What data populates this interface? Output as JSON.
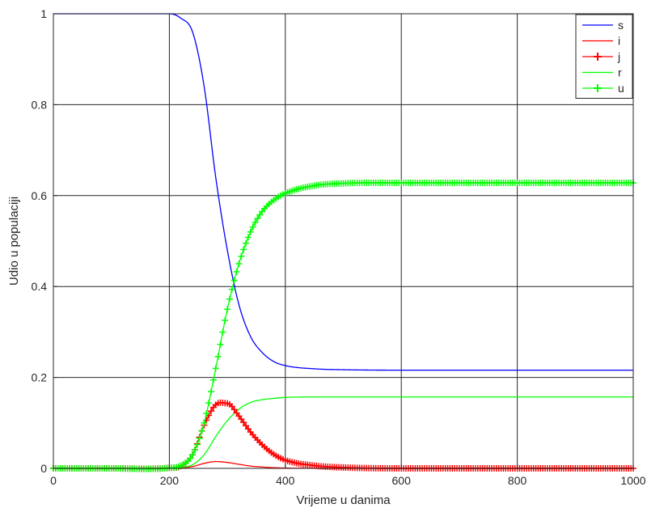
{
  "chart_data": {
    "type": "line",
    "title": "",
    "xlabel": "Vrijeme u danima",
    "ylabel": "Udio u populaciji",
    "xlim": [
      0,
      1000
    ],
    "ylim": [
      0,
      1
    ],
    "xticks": [
      "0",
      "200",
      "400",
      "600",
      "800",
      "1000"
    ],
    "yticks": [
      "0",
      "0.2",
      "0.4",
      "0.6",
      "0.8",
      "1"
    ],
    "grid": true,
    "legend_position": "top-right",
    "x": [
      0,
      100,
      200,
      220,
      240,
      260,
      280,
      300,
      320,
      340,
      360,
      380,
      400,
      450,
      500,
      600,
      800,
      1000
    ],
    "series": [
      {
        "name": "s",
        "color": "#0000ff",
        "marker": "none",
        "values": [
          1.0,
          1.0,
          1.0,
          0.99,
          0.96,
          0.84,
          0.64,
          0.48,
          0.36,
          0.29,
          0.255,
          0.235,
          0.226,
          0.219,
          0.217,
          0.216,
          0.216,
          0.216
        ]
      },
      {
        "name": "i",
        "color": "#ff0000",
        "marker": "none",
        "values": [
          0.0,
          0.0,
          0.0005,
          0.001,
          0.004,
          0.011,
          0.015,
          0.013,
          0.009,
          0.005,
          0.003,
          0.0015,
          0.0007,
          0.0002,
          0.0,
          0.0,
          0.0,
          0.0
        ]
      },
      {
        "name": "j",
        "color": "#ff0000",
        "marker": "plus",
        "values": [
          0.0,
          0.0,
          0.001,
          0.005,
          0.03,
          0.095,
          0.14,
          0.143,
          0.115,
          0.08,
          0.052,
          0.031,
          0.018,
          0.006,
          0.002,
          0.0,
          0.0,
          0.0
        ]
      },
      {
        "name": "r",
        "color": "#00ff00",
        "marker": "none",
        "values": [
          0.0,
          0.0,
          0.0,
          0.002,
          0.008,
          0.03,
          0.07,
          0.105,
          0.13,
          0.145,
          0.151,
          0.154,
          0.156,
          0.157,
          0.157,
          0.157,
          0.157,
          0.157
        ]
      },
      {
        "name": "u",
        "color": "#00ff00",
        "marker": "plus",
        "values": [
          0.0,
          0.0,
          0.001,
          0.006,
          0.03,
          0.1,
          0.22,
          0.35,
          0.45,
          0.52,
          0.565,
          0.59,
          0.605,
          0.622,
          0.627,
          0.628,
          0.628,
          0.628
        ]
      }
    ]
  }
}
